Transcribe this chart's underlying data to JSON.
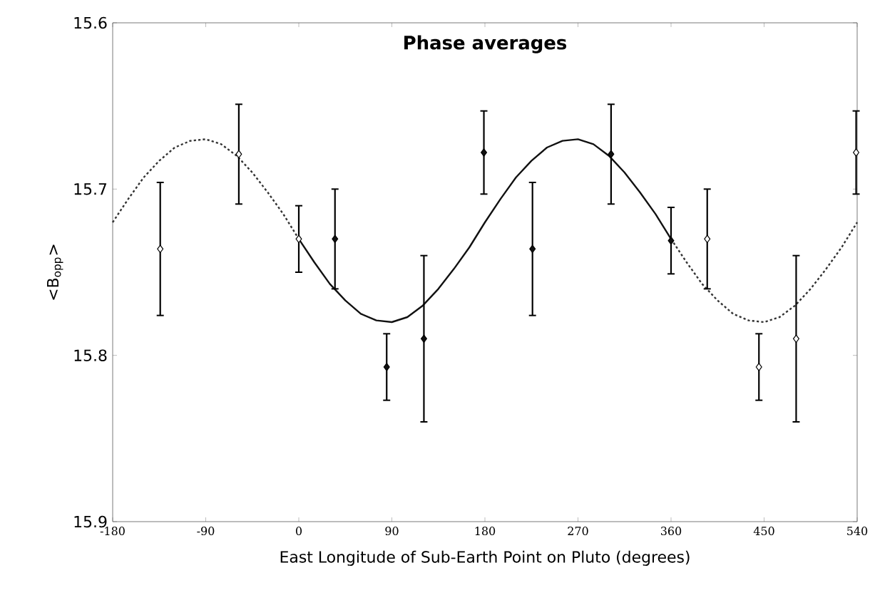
{
  "chart_data": {
    "type": "scatter",
    "title": "Phase averages",
    "xlabel": "East Longitude of Sub-Earth Point on Pluto (degrees)",
    "ylabel": "<B$_{opp}$>",
    "xlim": [
      -180,
      540
    ],
    "xticks": [
      -180,
      -90,
      0,
      90,
      180,
      270,
      360,
      450,
      540
    ],
    "ylim": [
      15.9,
      15.6
    ],
    "yticks": [
      15.6,
      15.7,
      15.8,
      15.9
    ],
    "grid": false,
    "series": [
      {
        "type": "line",
        "line_style": "dotted",
        "marker": "none",
        "color": "#333333",
        "x": [
          -180,
          -165,
          -150,
          -135,
          -120,
          -105,
          -90,
          -75,
          -60,
          -45,
          -30,
          -15,
          0
        ],
        "values": [
          15.72,
          15.706,
          15.693,
          15.683,
          15.675,
          15.671,
          15.67,
          15.673,
          15.68,
          15.69,
          15.702,
          15.715,
          15.73
        ]
      },
      {
        "type": "line",
        "line_style": "solid",
        "marker": "none",
        "color": "#111111",
        "x": [
          0,
          15,
          30,
          45,
          60,
          75,
          90,
          105,
          120,
          135,
          150,
          165,
          180,
          195,
          210,
          225,
          240,
          255,
          270,
          285,
          300,
          315,
          330,
          345,
          360
        ],
        "values": [
          15.73,
          15.744,
          15.757,
          15.767,
          15.775,
          15.779,
          15.78,
          15.777,
          15.77,
          15.76,
          15.748,
          15.735,
          15.72,
          15.706,
          15.693,
          15.683,
          15.675,
          15.671,
          15.67,
          15.673,
          15.68,
          15.69,
          15.702,
          15.715,
          15.73
        ]
      },
      {
        "type": "line",
        "line_style": "dotted",
        "marker": "none",
        "color": "#333333",
        "x": [
          360,
          375,
          390,
          405,
          420,
          435,
          450,
          465,
          480,
          495,
          510,
          525,
          540
        ],
        "values": [
          15.73,
          15.744,
          15.757,
          15.767,
          15.775,
          15.779,
          15.78,
          15.777,
          15.77,
          15.76,
          15.748,
          15.735,
          15.72
        ]
      },
      {
        "marker": "diamond",
        "color": "#ffffff",
        "x": [
          -134,
          -58,
          0,
          395,
          445,
          481,
          539
        ],
        "values": [
          15.736,
          15.679,
          15.73,
          15.73,
          15.807,
          15.79,
          15.678
        ],
        "errors": [
          0.04,
          0.03,
          0.02,
          0.03,
          0.02,
          0.05,
          0.025
        ]
      },
      {
        "marker": "diamond",
        "color": "#111111",
        "x": [
          35,
          85,
          121,
          179,
          226,
          302,
          360
        ],
        "values": [
          15.73,
          15.807,
          15.79,
          15.678,
          15.736,
          15.679,
          15.731
        ],
        "errors": [
          0.03,
          0.02,
          0.05,
          0.025,
          0.04,
          0.03,
          0.02
        ]
      }
    ]
  }
}
